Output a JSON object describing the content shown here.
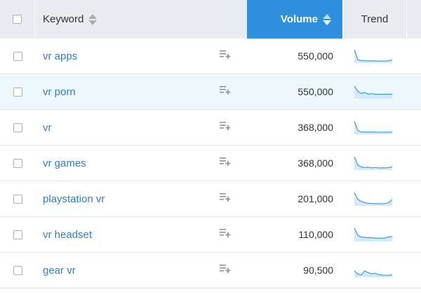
{
  "header": {
    "keyword_label": "Keyword",
    "volume_label": "Volume",
    "trend_label": "Trend"
  },
  "colors": {
    "accent": "#2e8fde",
    "link": "#2e7fc9",
    "trend_line": "#3b9be0",
    "trend_fill": "#d5e9f8",
    "header_bg": "#e8ecf0",
    "highlight_row": "#eef7fc"
  },
  "icons": {
    "sort": "sort-arrows-icon",
    "add_to_list": "playlist-add-icon"
  },
  "rows": [
    {
      "keyword": "vr apps",
      "volume": "550,000",
      "trend": [
        1.0,
        0.2,
        0.14,
        0.13,
        0.12,
        0.11,
        0.11,
        0.1,
        0.1,
        0.1,
        0.12,
        0.2
      ],
      "highlight": false
    },
    {
      "keyword": "vr porn",
      "volume": "550,000",
      "trend": [
        0.95,
        0.55,
        0.35,
        0.45,
        0.3,
        0.35,
        0.3,
        0.3,
        0.3,
        0.3,
        0.3,
        0.3
      ],
      "highlight": true
    },
    {
      "keyword": "vr",
      "volume": "368,000",
      "trend": [
        1.0,
        0.25,
        0.15,
        0.14,
        0.13,
        0.13,
        0.13,
        0.12,
        0.12,
        0.12,
        0.13,
        0.15
      ],
      "highlight": false
    },
    {
      "keyword": "vr games",
      "volume": "368,000",
      "trend": [
        1.0,
        0.35,
        0.2,
        0.15,
        0.17,
        0.13,
        0.15,
        0.12,
        0.13,
        0.12,
        0.15,
        0.2
      ],
      "highlight": false
    },
    {
      "keyword": "playstation vr",
      "volume": "201,000",
      "trend": [
        1.0,
        0.45,
        0.3,
        0.2,
        0.15,
        0.13,
        0.12,
        0.11,
        0.1,
        0.12,
        0.2,
        0.45
      ],
      "highlight": false
    },
    {
      "keyword": "vr headset",
      "volume": "110,000",
      "trend": [
        1.0,
        0.45,
        0.3,
        0.28,
        0.25,
        0.25,
        0.22,
        0.2,
        0.2,
        0.22,
        0.3,
        0.35
      ],
      "highlight": false
    },
    {
      "keyword": "gear vr",
      "volume": "90,500",
      "trend": [
        0.45,
        0.2,
        0.12,
        0.45,
        0.3,
        0.22,
        0.25,
        0.15,
        0.12,
        0.1,
        0.1,
        0.15
      ],
      "highlight": false
    }
  ]
}
